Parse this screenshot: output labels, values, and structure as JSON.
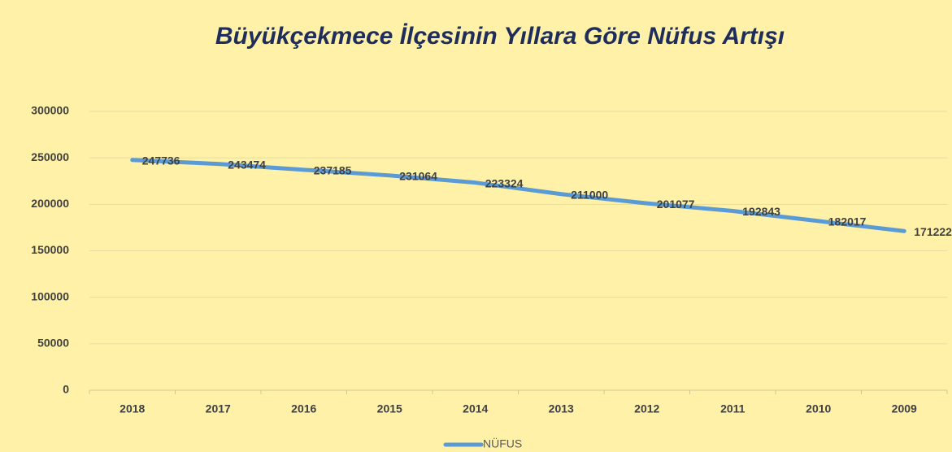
{
  "chart_data": {
    "type": "line",
    "title": "Büyükçekmece İlçesinin Yıllara Göre Nüfus Artışı",
    "categories": [
      "2018",
      "2017",
      "2016",
      "2015",
      "2014",
      "2013",
      "2012",
      "2011",
      "2010",
      "2009"
    ],
    "series": [
      {
        "name": "NÜFUS",
        "color": "#5b9bd5",
        "values": [
          247736,
          243474,
          237185,
          231064,
          223324,
          211000,
          201077,
          192843,
          182017,
          171222
        ]
      }
    ],
    "ylim": [
      0,
      300000
    ],
    "yticks": [
      0,
      50000,
      100000,
      150000,
      200000,
      250000,
      300000
    ],
    "grid": true,
    "legend": "bottom"
  }
}
